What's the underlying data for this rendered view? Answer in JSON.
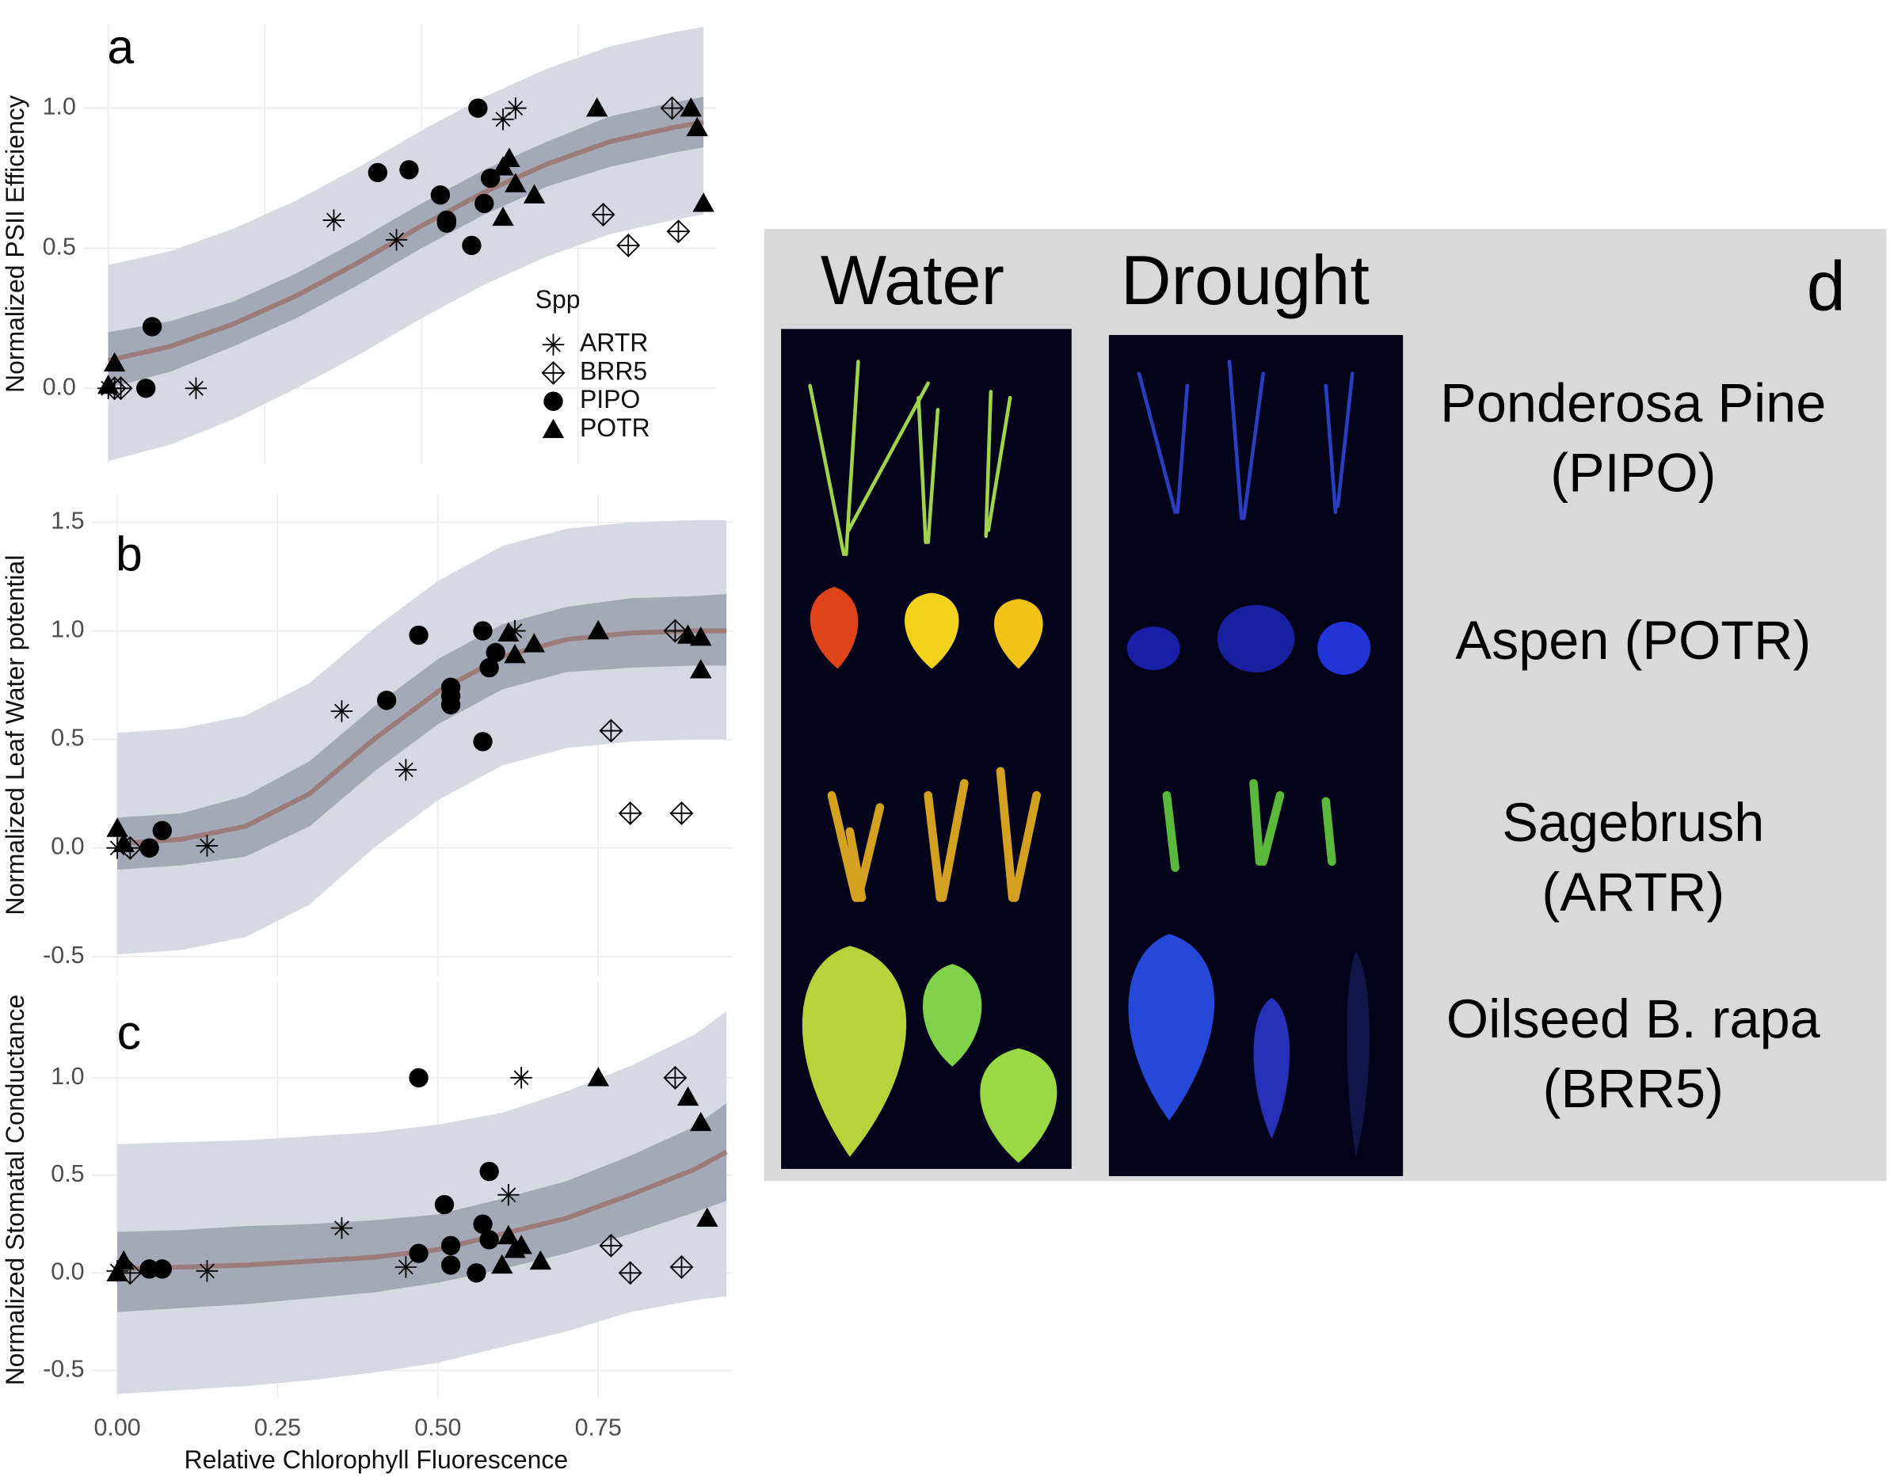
{
  "chart_data": [
    {
      "type": "scatter",
      "tag": "a",
      "y_label": "Normalized PSII Efficiency",
      "xlim": [
        -0.04,
        0.97
      ],
      "xticks": [
        0,
        0.25,
        0.5,
        0.75
      ],
      "ylim": [
        -0.27,
        1.3
      ],
      "yticks": [
        {
          "value": 0,
          "label": "0.0"
        },
        0.5,
        {
          "value": 1,
          "label": "1.0"
        }
      ],
      "grid": true,
      "legend": {
        "title": "Spp",
        "position": "right"
      },
      "series": [
        {
          "name": "ARTR",
          "marker": "asterisk",
          "color": "#000000",
          "x": [
            0.36,
            0.46,
            0.63,
            0.65,
            0.14,
            0
          ],
          "values": [
            0.6,
            0.53,
            0.96,
            1.0,
            0,
            0
          ]
        },
        {
          "name": "BRR5",
          "marker": "crossed-diamond",
          "color": "#000000",
          "x": [
            0.02,
            0.79,
            0.83,
            0.9,
            0.91,
            0.01
          ],
          "values": [
            0,
            0.62,
            0.51,
            1.0,
            0.56,
            0
          ]
        },
        {
          "name": "PIPO",
          "marker": "circle",
          "color": "#000000",
          "x": [
            0.07,
            0.06,
            0.43,
            0.48,
            0.53,
            0.54,
            0.54,
            0.58,
            0.59,
            0.61,
            0.6
          ],
          "values": [
            0.22,
            0,
            0.77,
            0.78,
            0.69,
            0.6,
            0.59,
            0.51,
            1.0,
            0.75,
            0.66
          ]
        },
        {
          "name": "POTR",
          "marker": "triangle",
          "color": "#000000",
          "x": [
            0.01,
            0,
            0.78,
            0.93,
            0.94,
            0.95,
            0.64,
            0.65,
            0.68,
            0.63,
            0.63
          ],
          "values": [
            0.09,
            0.01,
            1.0,
            1.0,
            0.93,
            0.66,
            0.82,
            0.73,
            0.69,
            0.61,
            0.79
          ]
        }
      ],
      "fit": {
        "color": "#9c7b7b",
        "inner_color": "#a4a9b7",
        "outer_color": "#d6d9e2",
        "x": [
          0,
          0.1,
          0.2,
          0.3,
          0.4,
          0.5,
          0.6,
          0.7,
          0.8,
          0.9,
          0.95
        ],
        "values": [
          0.1,
          0.15,
          0.23,
          0.33,
          0.45,
          0.58,
          0.7,
          0.8,
          0.88,
          0.93,
          0.95
        ],
        "inner_lower": [
          0.0,
          0.06,
          0.15,
          0.25,
          0.37,
          0.5,
          0.62,
          0.72,
          0.79,
          0.84,
          0.86
        ],
        "inner_upper": [
          0.2,
          0.24,
          0.31,
          0.41,
          0.53,
          0.66,
          0.78,
          0.88,
          0.97,
          1.02,
          1.04
        ],
        "outer_lower": [
          -0.26,
          -0.2,
          -0.11,
          0,
          0.12,
          0.25,
          0.37,
          0.47,
          0.55,
          0.6,
          0.62
        ],
        "outer_upper": [
          0.44,
          0.49,
          0.57,
          0.67,
          0.79,
          0.92,
          1.04,
          1.14,
          1.22,
          1.27,
          1.29
        ]
      }
    },
    {
      "type": "scatter",
      "tag": "b",
      "y_label": "Normalized Leaf Water potential",
      "xlim": [
        -0.04,
        0.96
      ],
      "xticks": [
        0,
        0.25,
        0.5,
        0.75
      ],
      "ylim": [
        -0.59,
        1.63
      ],
      "yticks": [
        -0.5,
        {
          "value": 0,
          "label": "0.0"
        },
        0.5,
        {
          "value": 1,
          "label": "1.0"
        },
        1.5
      ],
      "grid": true,
      "series": [
        {
          "name": "ARTR",
          "marker": "asterisk",
          "color": "#000000",
          "x": [
            0.35,
            0.45,
            0.62,
            0.14,
            0
          ],
          "values": [
            0.63,
            0.36,
            1.0,
            0.01,
            0
          ]
        },
        {
          "name": "BRR5",
          "marker": "crossed-diamond",
          "color": "#000000",
          "x": [
            0.77,
            0.8,
            0.88,
            0.87,
            0.02
          ],
          "values": [
            0.54,
            0.16,
            0.16,
            1.0,
            0
          ]
        },
        {
          "name": "PIPO",
          "marker": "circle",
          "color": "#000000",
          "x": [
            0.47,
            0.42,
            0.52,
            0.52,
            0.52,
            0.57,
            0.57,
            0.58,
            0.59,
            0.05,
            0.07
          ],
          "values": [
            0.98,
            0.68,
            0.74,
            0.7,
            0.66,
            0.49,
            1.0,
            0.83,
            0.9,
            0,
            0.08
          ]
        },
        {
          "name": "POTR",
          "marker": "triangle",
          "color": "#000000",
          "x": [
            0,
            0.01,
            0.75,
            0.89,
            0.91,
            0.91,
            0.61,
            0.62,
            0.65
          ],
          "values": [
            0.09,
            0.02,
            1.0,
            0.98,
            0.97,
            0.82,
            0.99,
            0.89,
            0.94
          ]
        }
      ],
      "fit": {
        "color": "#9c7b7b",
        "inner_color": "#a4a9b7",
        "outer_color": "#d6d9e2",
        "x": [
          0,
          0.1,
          0.2,
          0.3,
          0.4,
          0.5,
          0.6,
          0.7,
          0.8,
          0.9,
          0.95
        ],
        "values": [
          0.02,
          0.04,
          0.1,
          0.25,
          0.5,
          0.72,
          0.88,
          0.96,
          0.99,
          1.0,
          1.0
        ],
        "inner_lower": [
          -0.1,
          -0.08,
          -0.04,
          0.1,
          0.35,
          0.57,
          0.73,
          0.81,
          0.83,
          0.84,
          0.84
        ],
        "inner_upper": [
          0.14,
          0.16,
          0.24,
          0.4,
          0.65,
          0.87,
          1.03,
          1.11,
          1.15,
          1.16,
          1.17
        ],
        "outer_lower": [
          -0.49,
          -0.47,
          -0.41,
          -0.26,
          0,
          0.22,
          0.38,
          0.46,
          0.49,
          0.5,
          0.5
        ],
        "outer_upper": [
          0.53,
          0.55,
          0.61,
          0.76,
          1.01,
          1.23,
          1.39,
          1.47,
          1.5,
          1.51,
          1.51
        ]
      }
    },
    {
      "type": "scatter",
      "tag": "c",
      "y_label": "Normalized Stomatal Conductance",
      "x_label": "Relative Chlorophyll Fluorescence",
      "xlim": [
        -0.04,
        0.96
      ],
      "xticks": [
        {
          "value": 0,
          "label": "0.00"
        },
        0.25,
        {
          "value": 0.5,
          "label": "0.50"
        },
        0.75
      ],
      "ylim": [
        -0.64,
        1.49
      ],
      "yticks": [
        -0.5,
        {
          "value": 0,
          "label": "0.0"
        },
        0.5,
        {
          "value": 1,
          "label": "1.0"
        }
      ],
      "grid": true,
      "series": [
        {
          "name": "ARTR",
          "marker": "asterisk",
          "color": "#000000",
          "x": [
            0.35,
            0.45,
            0.63,
            0.61,
            0.14,
            0
          ],
          "values": [
            0.23,
            0.03,
            1.0,
            0.4,
            0.01,
            0.01
          ]
        },
        {
          "name": "BRR5",
          "marker": "crossed-diamond",
          "color": "#000000",
          "x": [
            0.77,
            0.8,
            0.88,
            0.87,
            0.02
          ],
          "values": [
            0.14,
            0,
            0.03,
            1.0,
            0
          ]
        },
        {
          "name": "PIPO",
          "marker": "circle",
          "color": "#000000",
          "x": [
            0.47,
            0.47,
            0.51,
            0.52,
            0.52,
            0.57,
            0.56,
            0.58,
            0.58,
            0.05,
            0.07
          ],
          "values": [
            1.0,
            0.1,
            0.35,
            0.14,
            0.04,
            0.25,
            0,
            0.17,
            0.52,
            0.02,
            0.02
          ]
        },
        {
          "name": "POTR",
          "marker": "triangle",
          "color": "#000000",
          "x": [
            0,
            0.01,
            0.75,
            0.89,
            0.91,
            0.92,
            0.61,
            0.62,
            0.63,
            0.6,
            0.66
          ],
          "values": [
            0,
            0.06,
            1.0,
            0.9,
            0.77,
            0.28,
            0.19,
            0.12,
            0.14,
            0.04,
            0.06
          ]
        }
      ],
      "fit": {
        "color": "#9c7b7b",
        "inner_color": "#a4a9b7",
        "outer_color": "#d6d9e2",
        "x": [
          0,
          0.1,
          0.2,
          0.3,
          0.4,
          0.5,
          0.6,
          0.7,
          0.8,
          0.9,
          0.95
        ],
        "values": [
          0.02,
          0.03,
          0.04,
          0.06,
          0.08,
          0.12,
          0.2,
          0.28,
          0.4,
          0.53,
          0.62
        ],
        "inner_lower": [
          -0.2,
          -0.18,
          -0.16,
          -0.13,
          -0.1,
          -0.05,
          0.02,
          0.1,
          0.2,
          0.31,
          0.37
        ],
        "inner_upper": [
          0.21,
          0.22,
          0.24,
          0.25,
          0.27,
          0.3,
          0.38,
          0.47,
          0.6,
          0.75,
          0.87
        ],
        "outer_lower": [
          -0.62,
          -0.6,
          -0.58,
          -0.55,
          -0.51,
          -0.46,
          -0.38,
          -0.3,
          -0.2,
          -0.14,
          -0.12
        ],
        "outer_upper": [
          0.66,
          0.67,
          0.68,
          0.7,
          0.72,
          0.76,
          0.82,
          0.93,
          1.06,
          1.22,
          1.34
        ]
      }
    }
  ],
  "panel_d": {
    "tag": "d",
    "columns": [
      "Water",
      "Drought"
    ],
    "rows": [
      [
        "Ponderosa Pine",
        "(PIPO)"
      ],
      [
        "Aspen (POTR)"
      ],
      [
        "Sagebrush",
        "(ARTR)"
      ],
      [
        "Oilseed B. rapa",
        "(BRR5)"
      ]
    ]
  }
}
